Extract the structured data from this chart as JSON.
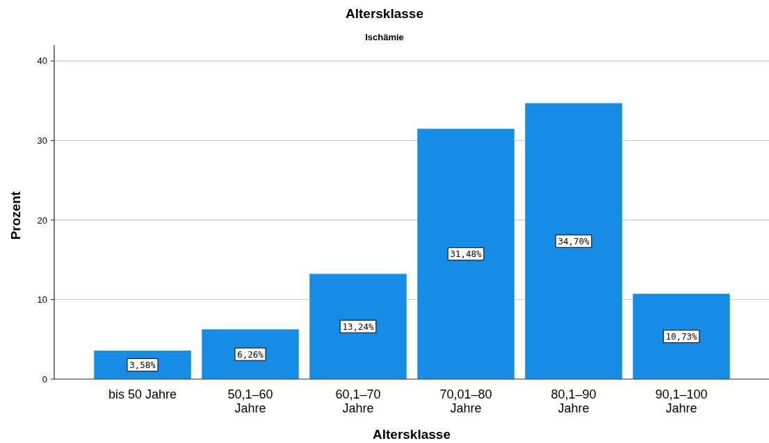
{
  "chart_data": {
    "type": "bar",
    "title": "Altersklasse",
    "subtitle": "Ischämie",
    "xlabel": "Altersklasse",
    "ylabel": "Prozent",
    "categories": [
      "bis 50 Jahre",
      "50,1–60\nJahre",
      "60,1–70\nJahre",
      "70,01–80\nJahre",
      "80,1–90\nJahre",
      "90,1–100\nJahre"
    ],
    "values": [
      3.58,
      6.26,
      13.24,
      31.48,
      34.7,
      10.73
    ],
    "value_labels": [
      "3,58%",
      "6,26%",
      "13,24%",
      "31,48%",
      "34,70%",
      "10,73%"
    ],
    "color": "#158de6",
    "ylim": [
      0,
      42
    ],
    "yticks": [
      0,
      10,
      20,
      30,
      40
    ],
    "grid": "y"
  }
}
